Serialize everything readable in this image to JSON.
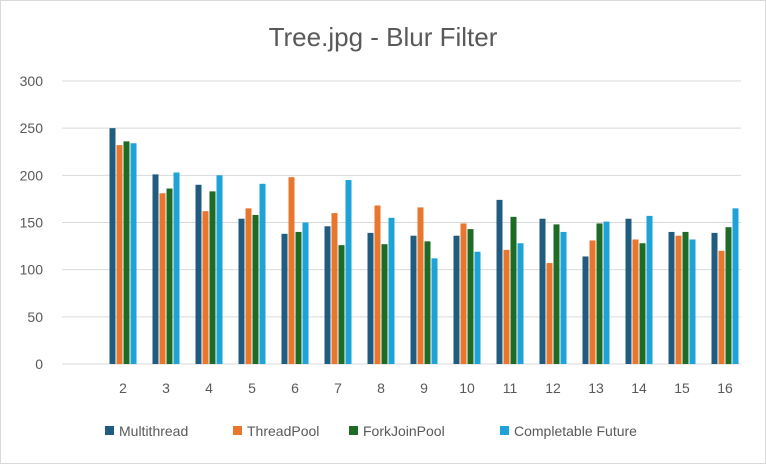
{
  "chart_data": {
    "type": "bar",
    "title": "Tree.jpg - Blur Filter",
    "xlabel": "",
    "ylabel": "",
    "ylim": [
      0,
      300
    ],
    "yticks": [
      0,
      50,
      100,
      150,
      200,
      250,
      300
    ],
    "grid": true,
    "legend_position": "bottom",
    "categories": [
      "2",
      "3",
      "4",
      "5",
      "6",
      "7",
      "8",
      "9",
      "10",
      "11",
      "12",
      "13",
      "14",
      "15",
      "16"
    ],
    "series": [
      {
        "name": "Multithread",
        "color": "#1f5c80",
        "values": [
          250,
          201,
          190,
          154,
          138,
          146,
          139,
          136,
          136,
          174,
          154,
          114,
          154,
          140,
          139
        ]
      },
      {
        "name": "ThreadPool",
        "color": "#e8762d",
        "values": [
          232,
          181,
          162,
          165,
          198,
          160,
          168,
          166,
          149,
          121,
          107,
          131,
          132,
          136,
          120
        ]
      },
      {
        "name": "ForkJoinPool",
        "color": "#1d6b25",
        "values": [
          236,
          186,
          183,
          158,
          140,
          126,
          127,
          130,
          143,
          156,
          148,
          149,
          128,
          140,
          145
        ]
      },
      {
        "name": "Completable Future",
        "color": "#1da3d7",
        "values": [
          234,
          203,
          200,
          191,
          150,
          195,
          155,
          112,
          119,
          128,
          140,
          151,
          157,
          132,
          165
        ]
      }
    ]
  }
}
